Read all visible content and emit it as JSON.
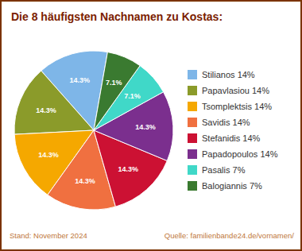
{
  "chart_data": {
    "type": "pie",
    "title": "Die 8 häufigsten Nachnamen zu Kostas:",
    "categories": [
      "Stilianos 14%",
      "Papavlasiou 14%",
      "Tsomplektsis 14%",
      "Savidis 14%",
      "Stefanidis 14%",
      "Papadopoulos 14%",
      "Pasalis 7%",
      "Balogiannis 7%"
    ],
    "values": [
      14.3,
      14.3,
      14.3,
      14.3,
      14.3,
      14.3,
      7.1,
      7.1
    ],
    "value_labels": [
      "14.3%",
      "14.3%",
      "14.3%",
      "14.3%",
      "14.3%",
      "14.3%",
      "7.1%",
      "7.1%"
    ],
    "colors": [
      "#7EB6E8",
      "#8B9B2A",
      "#F5A800",
      "#F07040",
      "#CC1133",
      "#7B2F8E",
      "#40D8C8",
      "#3A7A30"
    ],
    "data_labels": true,
    "legend": "right",
    "annotations": [
      "Stand: November 2024",
      "Quelle: familienbande24.de/vornamen/"
    ]
  }
}
